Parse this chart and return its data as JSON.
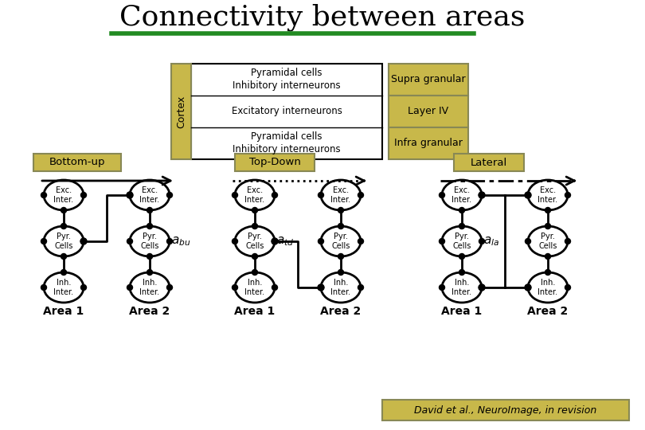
{
  "title": "Connectivity between areas",
  "title_fontsize": 26,
  "title_font": "serif",
  "bg_color": "#ffffff",
  "green_line_color": "#228B22",
  "olive_color": "#c8b84a",
  "olive_border": "#888855",
  "cortex_label": "Cortex",
  "row_labels": [
    "Pyramidal cells\nInhibitory interneurons",
    "Excitatory interneurons",
    "Pyramidal cells\nInhibitory interneurons"
  ],
  "layer_labels": [
    "Supra granular",
    "Layer IV",
    "Infra granular"
  ],
  "bottom_up_label": "Bottom-up",
  "top_down_label": "Top-Down",
  "lateral_label": "Lateral",
  "node_labels": [
    "Exc.\nInter.",
    "Pyr.\nCells",
    "Inh.\nInter."
  ],
  "area1_label": "Area 1",
  "area2_label": "Area 2",
  "citation": "David et al., NeuroImage, in revision"
}
